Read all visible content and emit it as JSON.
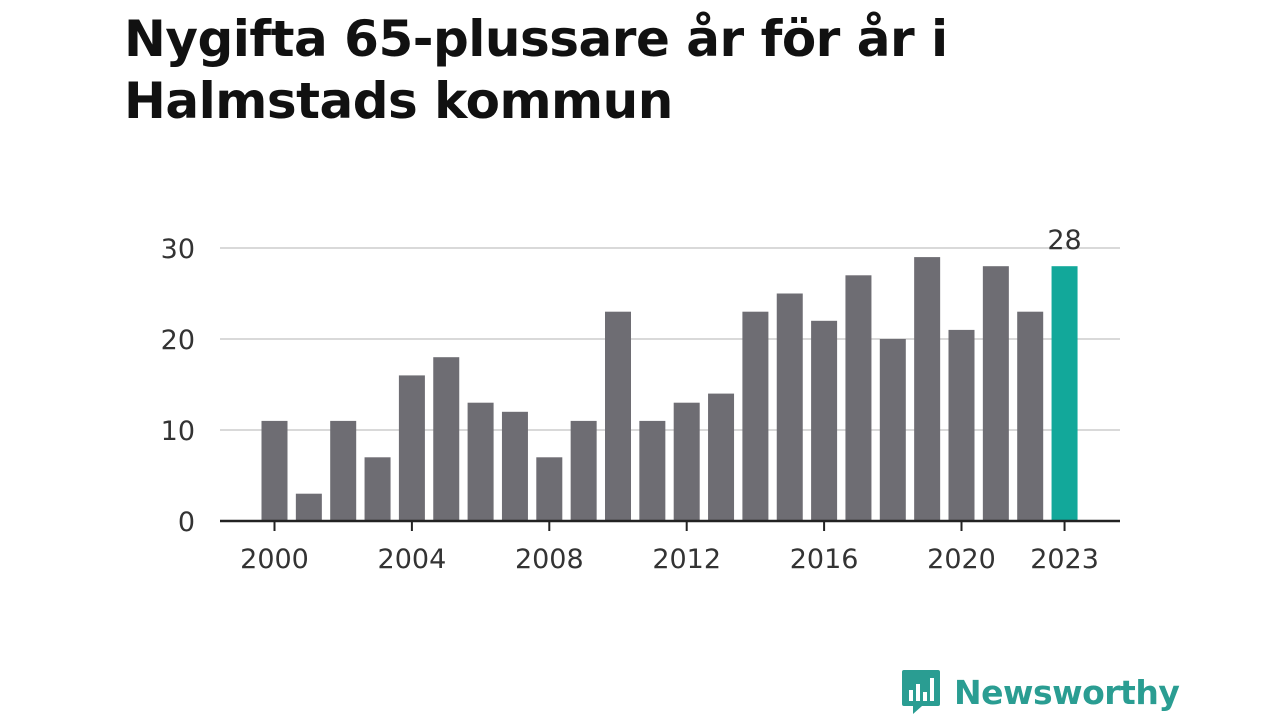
{
  "title": "Nygifta 65-plussare år för år i Halmstads kommun",
  "brand": {
    "name": "Newsworthy",
    "icon": "newsworthy-logo-icon",
    "color": "#2a9d92"
  },
  "colors": {
    "bar": "#6e6d73",
    "highlight": "#12a89a",
    "grid": "#d9d9d9",
    "axis": "#222222"
  },
  "chart_data": {
    "type": "bar",
    "title": "Nygifta 65-plussare år för år i Halmstads kommun",
    "xlabel": "",
    "ylabel": "",
    "categories": [
      "2000",
      "2001",
      "2002",
      "2003",
      "2004",
      "2005",
      "2006",
      "2007",
      "2008",
      "2009",
      "2010",
      "2011",
      "2012",
      "2013",
      "2014",
      "2015",
      "2016",
      "2017",
      "2018",
      "2019",
      "2020",
      "2021",
      "2022",
      "2023"
    ],
    "values": [
      11,
      3,
      11,
      7,
      16,
      18,
      13,
      12,
      7,
      11,
      23,
      11,
      13,
      14,
      23,
      25,
      22,
      27,
      20,
      29,
      21,
      28,
      23,
      28
    ],
    "highlight_index": 23,
    "highlight_label": "28",
    "ylim": [
      0,
      30
    ],
    "yticks": [
      0,
      10,
      20,
      30
    ],
    "xticks": [
      "2000",
      "2004",
      "2008",
      "2012",
      "2016",
      "2020",
      "2023"
    ],
    "grid": true,
    "legend": "none"
  }
}
